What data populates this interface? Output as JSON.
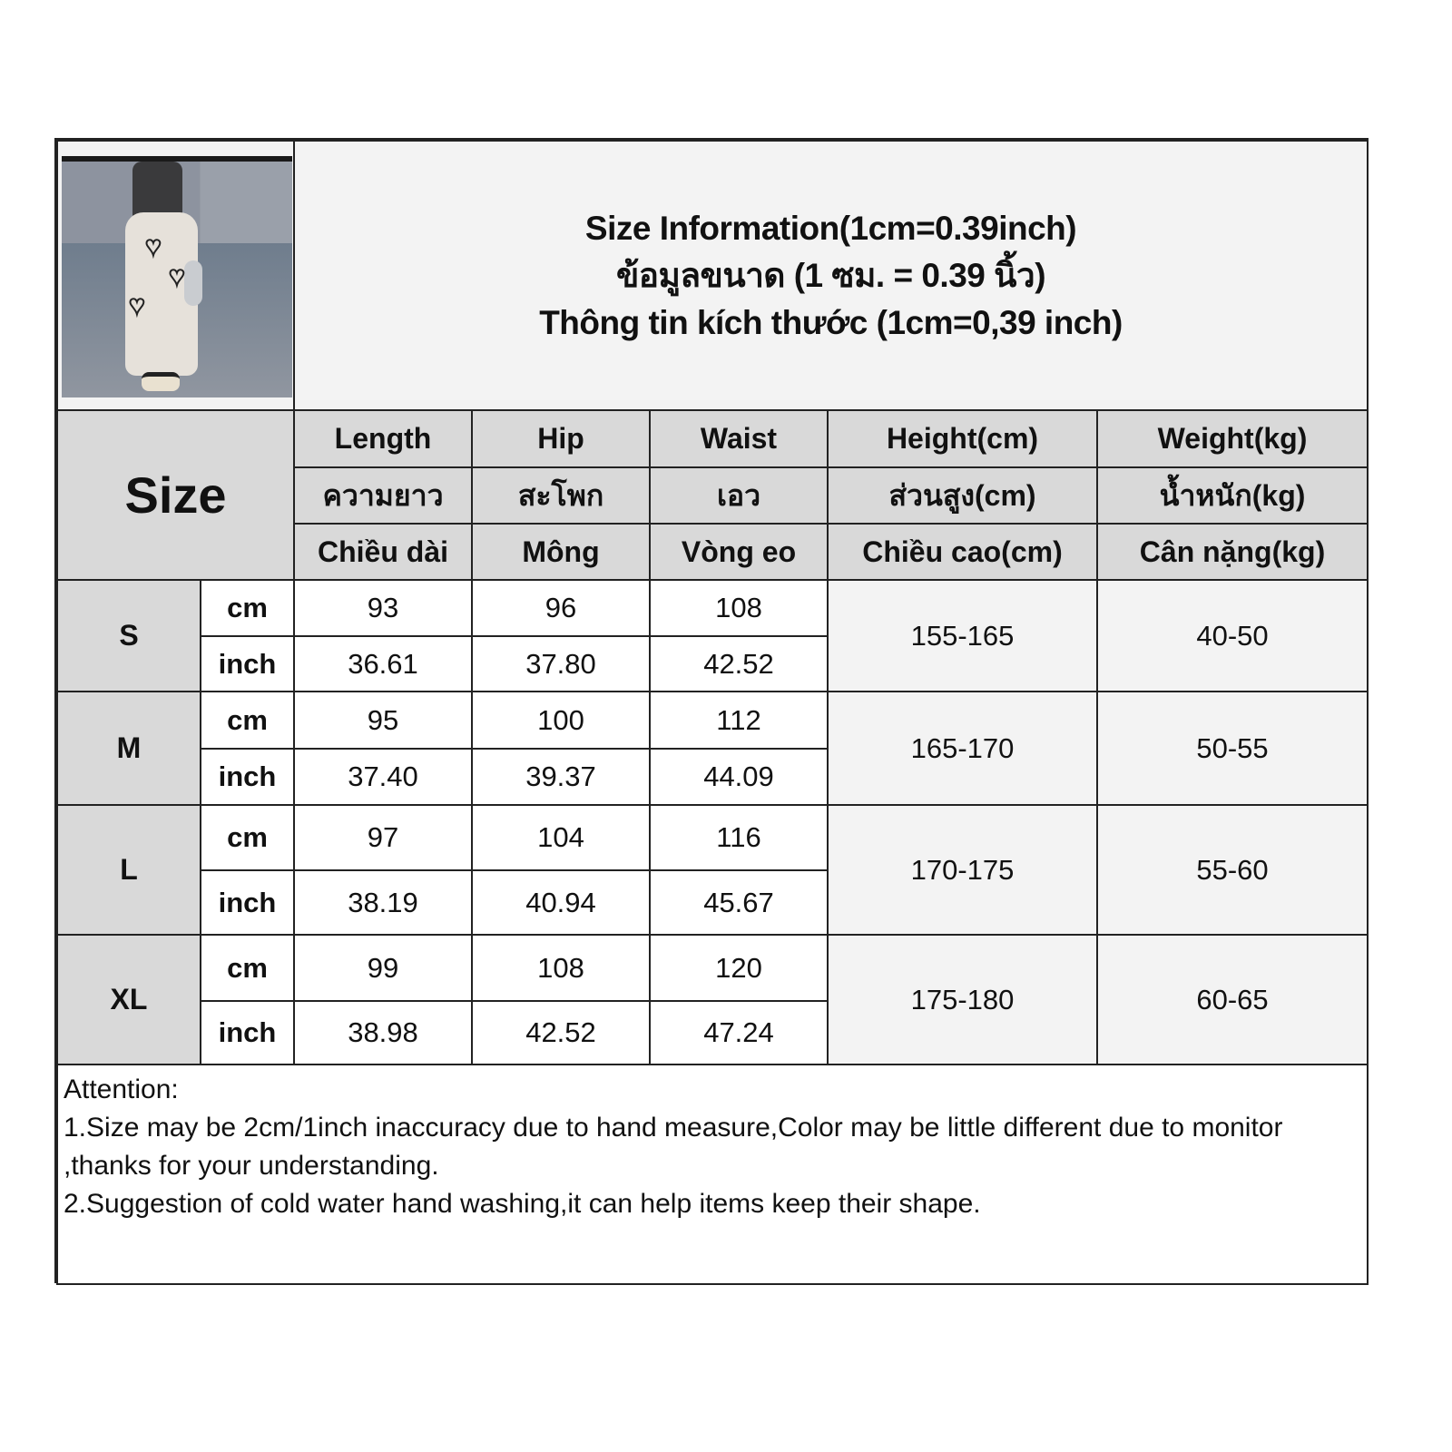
{
  "header": {
    "title_lines": [
      "Size Information(1cm=0.39inch)",
      "ข้อมูลขนาด (1 ซม. = 0.39 นิ้ว)",
      "Thông tin kích thước (1cm=0,39 inch)"
    ],
    "photo_alt": "product photo: white wide-leg pants with black heart prints"
  },
  "size_label": "Size",
  "columns": [
    {
      "en": "Length",
      "th": "ความยาว",
      "vi": "Chiều dài"
    },
    {
      "en": "Hip",
      "th": "สะโพก",
      "vi": "Mông"
    },
    {
      "en": "Waist",
      "th": "เอว",
      "vi": "Vòng eo"
    },
    {
      "en": "Height(cm)",
      "th": "ส่วนสูง(cm)",
      "vi": "Chiều cao(cm)"
    },
    {
      "en": "Weight(kg)",
      "th": "น้ำหนัก(kg)",
      "vi": "Cân nặng(kg)"
    }
  ],
  "units": {
    "cm": "cm",
    "inch": "inch"
  },
  "rows": [
    {
      "size": "S",
      "cm": [
        "93",
        "96",
        "108"
      ],
      "inch": [
        "36.61",
        "37.80",
        "42.52"
      ],
      "height": "155-165",
      "weight": "40-50"
    },
    {
      "size": "M",
      "cm": [
        "95",
        "100",
        "112"
      ],
      "inch": [
        "37.40",
        "39.37",
        "44.09"
      ],
      "height": "165-170",
      "weight": "50-55"
    },
    {
      "size": "L",
      "cm": [
        "97",
        "104",
        "116"
      ],
      "inch": [
        "38.19",
        "40.94",
        "45.67"
      ],
      "height": "170-175",
      "weight": "55-60"
    },
    {
      "size": "XL",
      "cm": [
        "99",
        "108",
        "120"
      ],
      "inch": [
        "38.98",
        "42.52",
        "47.24"
      ],
      "height": "175-180",
      "weight": "60-65"
    }
  ],
  "attention": {
    "title": "Attention:",
    "lines": [
      "1.Size may be 2cm/1inch inaccuracy due to hand measure,Color may be little different due to monitor ,thanks for your understanding.",
      "2.Suggestion of cold water hand washing,it can help items keep their shape."
    ]
  },
  "colors": {
    "header_bg": "#d9d9d9",
    "title_bg": "#f3f3f3",
    "border": "#222222"
  }
}
